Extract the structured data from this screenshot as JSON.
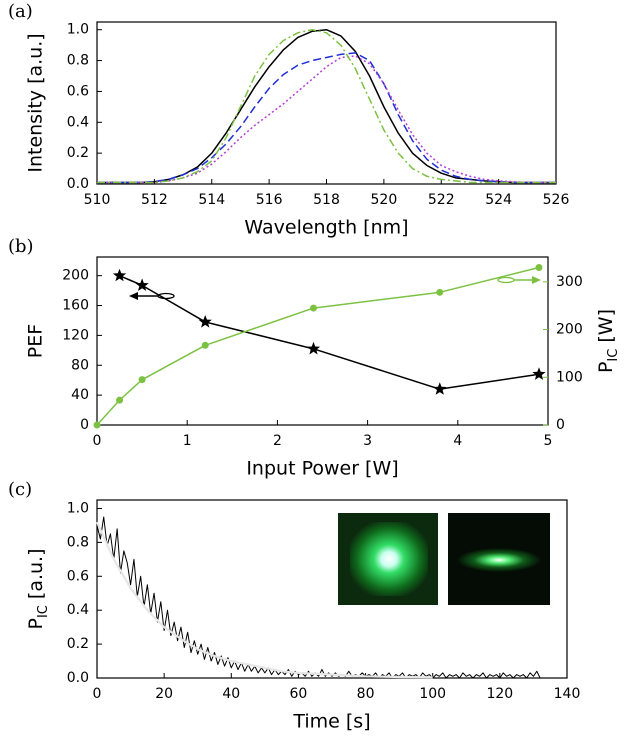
{
  "chart_data": [
    {
      "type": "line",
      "panel_label": "(a)",
      "xlabel": "Wavelength [nm]",
      "ylabel": "Intensity [a.u.]",
      "x": [
        510,
        510.5,
        511,
        511.5,
        512,
        512.5,
        513,
        513.5,
        514,
        514.5,
        515,
        515.5,
        516,
        516.5,
        517,
        517.5,
        518,
        518.5,
        519,
        519.5,
        520,
        520.5,
        521,
        521.5,
        522,
        522.5,
        523,
        523.5,
        524,
        524.5,
        525,
        525.5,
        526
      ],
      "series": [
        {
          "color": "#000000",
          "dash": "solid",
          "values": [
            0.01,
            0.01,
            0.01,
            0.01,
            0.015,
            0.03,
            0.06,
            0.11,
            0.2,
            0.33,
            0.48,
            0.63,
            0.76,
            0.87,
            0.95,
            0.99,
            1.0,
            0.96,
            0.86,
            0.7,
            0.5,
            0.33,
            0.2,
            0.12,
            0.07,
            0.04,
            0.03,
            0.02,
            0.015,
            0.01,
            0.01,
            0.01,
            0.01
          ]
        },
        {
          "color": "#1f2fd6",
          "dash": "dashed",
          "values": [
            0.01,
            0.01,
            0.01,
            0.01,
            0.015,
            0.03,
            0.06,
            0.1,
            0.17,
            0.26,
            0.37,
            0.5,
            0.62,
            0.71,
            0.77,
            0.8,
            0.82,
            0.84,
            0.85,
            0.8,
            0.65,
            0.45,
            0.28,
            0.16,
            0.09,
            0.05,
            0.03,
            0.02,
            0.015,
            0.01,
            0.01,
            0.01,
            0.01
          ]
        },
        {
          "color": "#b43cd8",
          "dash": "dotted",
          "values": [
            0.01,
            0.01,
            0.01,
            0.01,
            0.01,
            0.02,
            0.04,
            0.07,
            0.13,
            0.21,
            0.3,
            0.38,
            0.45,
            0.52,
            0.6,
            0.68,
            0.76,
            0.82,
            0.83,
            0.78,
            0.65,
            0.48,
            0.32,
            0.2,
            0.12,
            0.08,
            0.05,
            0.03,
            0.02,
            0.015,
            0.01,
            0.01,
            0.01
          ]
        },
        {
          "color": "#7cc242",
          "dash": "dashdot",
          "values": [
            0.01,
            0.01,
            0.01,
            0.01,
            0.01,
            0.02,
            0.04,
            0.08,
            0.15,
            0.3,
            0.5,
            0.7,
            0.84,
            0.93,
            0.98,
            1.0,
            0.98,
            0.9,
            0.75,
            0.55,
            0.35,
            0.2,
            0.1,
            0.05,
            0.03,
            0.02,
            0.01,
            0.01,
            0.01,
            0.01,
            0.01,
            0.01,
            0.01
          ]
        }
      ],
      "xlim": [
        510,
        526
      ],
      "xticks": [
        510,
        512,
        514,
        516,
        518,
        520,
        522,
        524,
        526
      ],
      "ylim": [
        0,
        1.05
      ],
      "yticks": [
        {
          "value": 0,
          "label": "0.0"
        },
        0.2,
        0.4,
        0.6,
        0.8,
        {
          "value": 1,
          "label": "1.0"
        }
      ]
    },
    {
      "type": "line",
      "panel_label": "(b)",
      "xlabel": "Input Power [W]",
      "ylabel": "PEF",
      "y2label_parts": [
        "P",
        "IC",
        " [W]"
      ],
      "series": [
        {
          "color": "#000000",
          "marker": "star",
          "x": [
            0.25,
            0.5,
            1.2,
            2.4,
            3.8,
            4.9
          ],
          "values": [
            200,
            187,
            138,
            102,
            48,
            68
          ]
        },
        {
          "color": "#7cc242",
          "marker": "circle",
          "axis": "y2",
          "x": [
            0,
            0.25,
            0.5,
            1.2,
            2.4,
            3.8,
            4.9
          ],
          "values": [
            0,
            52,
            95,
            167,
            245,
            278,
            330
          ]
        }
      ],
      "xlim": [
        0,
        5
      ],
      "xticks": [
        0,
        1,
        2,
        3,
        4,
        5
      ],
      "ylim": [
        0,
        225
      ],
      "yticks": [
        0,
        40,
        80,
        120,
        160,
        200
      ],
      "y2lim": [
        0,
        352
      ],
      "y2ticks": [
        0,
        100,
        200,
        300
      ]
    },
    {
      "type": "line",
      "panel_label": "(c)",
      "xlabel": "Time [s]",
      "ylabel_parts": [
        "P",
        "IC",
        " [a.u.]"
      ],
      "series": [
        {
          "color": "#000000",
          "dash": "solid",
          "width": 1,
          "x": [
            0,
            1,
            2,
            3,
            4,
            5,
            6,
            7,
            8,
            9,
            10,
            11,
            12,
            13,
            14,
            15,
            16,
            17,
            18,
            19,
            20,
            21,
            22,
            23,
            24,
            25,
            26,
            27,
            28,
            29,
            30,
            31,
            32,
            33,
            34,
            35,
            36,
            37,
            38,
            39,
            40,
            41,
            42,
            43,
            44,
            45,
            46,
            47,
            48,
            49,
            50,
            51,
            52,
            53,
            54,
            55,
            56,
            57,
            58,
            59,
            60,
            61,
            62,
            63,
            64,
            65,
            66,
            67,
            68,
            69,
            70,
            71,
            72,
            73,
            74,
            75,
            76,
            77,
            78,
            79,
            80,
            81,
            82,
            83,
            84,
            85,
            86,
            87,
            88,
            89,
            90,
            91,
            92,
            93,
            94,
            95,
            96,
            97,
            98,
            99,
            100,
            101,
            102,
            103,
            104,
            105,
            106,
            107,
            108,
            109,
            110,
            111,
            112,
            113,
            114,
            115,
            116,
            117,
            118,
            119,
            120,
            121,
            122,
            123,
            124,
            125,
            126,
            127,
            128,
            129,
            130,
            131,
            132
          ],
          "values": [
            0.9,
            0.82,
            0.95,
            0.78,
            0.85,
            0.7,
            0.88,
            0.62,
            0.75,
            0.68,
            0.55,
            0.7,
            0.48,
            0.6,
            0.42,
            0.55,
            0.38,
            0.5,
            0.33,
            0.45,
            0.28,
            0.4,
            0.25,
            0.33,
            0.22,
            0.3,
            0.18,
            0.27,
            0.15,
            0.22,
            0.14,
            0.2,
            0.11,
            0.18,
            0.1,
            0.15,
            0.08,
            0.13,
            0.07,
            0.12,
            0.06,
            0.1,
            0.05,
            0.09,
            0.04,
            0.08,
            0.04,
            0.07,
            0.03,
            0.06,
            0.03,
            0.06,
            0.02,
            0.05,
            0.02,
            0.04,
            0.02,
            0.05,
            0.01,
            0.04,
            0.02,
            0.03,
            0.01,
            0.04,
            0.01,
            0.03,
            0.01,
            0.05,
            0.01,
            0.03,
            0.01,
            0.03,
            0.01,
            0.02,
            0.01,
            0.04,
            0.01,
            0.02,
            0.01,
            0.03,
            0.01,
            0.02,
            0.01,
            0.03,
            0,
            0.02,
            0.01,
            0.03,
            0,
            0.02,
            0.01,
            0.03,
            0,
            0.02,
            0.01,
            0.02,
            0,
            0.03,
            0.01,
            0.02,
            0,
            0.02,
            0.01,
            0.03,
            0,
            0.02,
            0.01,
            0.02,
            0,
            0.03,
            0.01,
            0.02,
            0,
            0.02,
            0.01,
            0.03,
            0,
            0.02,
            0.01,
            0.02,
            0,
            0.03,
            0.01,
            0.02,
            0,
            0.02,
            0.01,
            0.02,
            0,
            0.03,
            0.01,
            0.04,
            0
          ]
        },
        {
          "color": "#e6e6e6",
          "dash": "solid",
          "width": 2.2,
          "x": [
            0,
            5,
            10,
            15,
            20,
            25,
            30,
            35,
            40,
            45,
            50,
            55,
            60,
            65,
            70,
            75,
            80,
            85,
            90,
            95,
            100
          ],
          "values": [
            0.92,
            0.7,
            0.53,
            0.4,
            0.3,
            0.23,
            0.17,
            0.13,
            0.1,
            0.08,
            0.06,
            0.04,
            0.03,
            0.025,
            0.02,
            0.015,
            0.01,
            0.008,
            0.006,
            0.005,
            0.004
          ]
        }
      ],
      "xlim": [
        0,
        140
      ],
      "xticks": [
        0,
        20,
        40,
        60,
        80,
        100,
        120,
        140
      ],
      "ylim": [
        0,
        1.05
      ],
      "yticks": [
        {
          "value": 0,
          "label": "0.0"
        },
        0.2,
        0.4,
        0.6,
        0.8,
        {
          "value": 1,
          "label": "1.0"
        }
      ]
    }
  ]
}
